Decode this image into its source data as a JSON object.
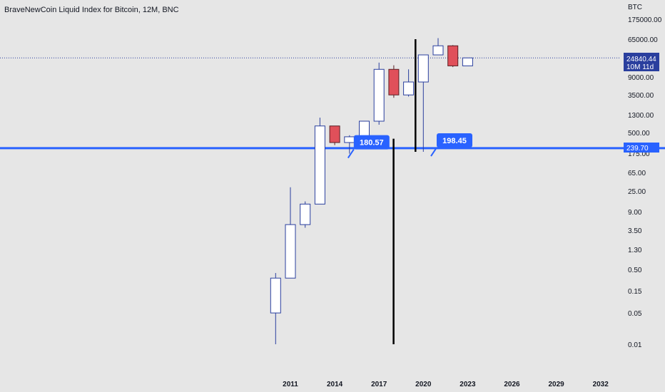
{
  "header": {
    "title": "BraveNewCoin Liquid Index for Bitcoin, 12M, BNC"
  },
  "colors": {
    "background": "#e6e6e6",
    "bull_border": "#2a3f9e",
    "bear_fill": "#e0505a",
    "horizontal_line": "#2962ff",
    "label_bg": "#2962ff",
    "last_price_bg": "#2a3f9e",
    "vertical_line": "#000000"
  },
  "price_axis": {
    "currency": "BTC",
    "last_price": "24840.44",
    "countdown": "10M 11d",
    "line_level_label": "239.70"
  },
  "annotations": [
    {
      "text": "180.57",
      "x": 2015,
      "y": 180.57
    },
    {
      "text": "198.45",
      "x": 2021,
      "y": 198.45
    }
  ],
  "chart_data": {
    "type": "candlestick",
    "title": "BraveNewCoin Liquid Index for Bitcoin, 12M, BNC",
    "y_scale": "log",
    "y_ticks": [
      "175000.00",
      "65000.00",
      "24000.00",
      "9000.00",
      "3500.00",
      "1300.00",
      "500.00",
      "175.00",
      "65.00",
      "25.00",
      "9.00",
      "3.50",
      "1.30",
      "0.50",
      "0.15",
      "0.05",
      "0.01"
    ],
    "x_ticks": [
      "2011",
      "2014",
      "2017",
      "2020",
      "2023",
      "2026",
      "2029",
      "2032"
    ],
    "candles": [
      {
        "year": 2010,
        "open": 0.05,
        "high": 0.39,
        "low": 0.01,
        "close": 0.3
      },
      {
        "year": 2011,
        "open": 0.3,
        "high": 32,
        "low": 0.3,
        "close": 4.7
      },
      {
        "year": 2012,
        "open": 4.7,
        "high": 15.5,
        "low": 4.0,
        "close": 13.5
      },
      {
        "year": 2013,
        "open": 13.5,
        "high": 1150,
        "low": 13.5,
        "close": 750
      },
      {
        "year": 2014,
        "open": 750,
        "high": 750,
        "low": 280,
        "close": 320
      },
      {
        "year": 2015,
        "open": 320,
        "high": 465,
        "low": 180.57,
        "close": 430
      },
      {
        "year": 2016,
        "open": 430,
        "high": 980,
        "low": 360,
        "close": 960
      },
      {
        "year": 2017,
        "open": 960,
        "high": 19500,
        "low": 800,
        "close": 13800
      },
      {
        "year": 2018,
        "open": 13800,
        "high": 17000,
        "low": 3200,
        "close": 3700
      },
      {
        "year": 2019,
        "open": 3700,
        "high": 13800,
        "low": 3400,
        "close": 7200
      },
      {
        "year": 2020,
        "open": 7200,
        "high": 29000,
        "low": 198.45,
        "close": 29000
      },
      {
        "year": 2021,
        "open": 29000,
        "high": 68800,
        "low": 28800,
        "close": 46300
      },
      {
        "year": 2022,
        "open": 46300,
        "high": 48000,
        "low": 15500,
        "close": 16500
      },
      {
        "year": 2023,
        "open": 16500,
        "high": 24840.44,
        "low": 16500,
        "close": 24840.44
      }
    ],
    "horizontal_line": 239.7,
    "vertical_lines": [
      {
        "x": 2019,
        "low": 0.01,
        "high": 390
      },
      {
        "x": 2020,
        "low": 198.45,
        "high": 65000
      }
    ]
  }
}
